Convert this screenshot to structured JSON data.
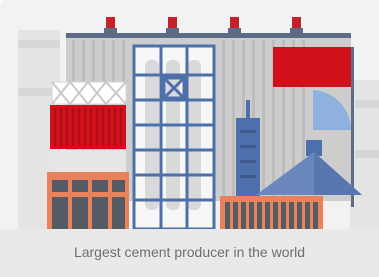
{
  "caption": "Largest cement producer in the world"
}
